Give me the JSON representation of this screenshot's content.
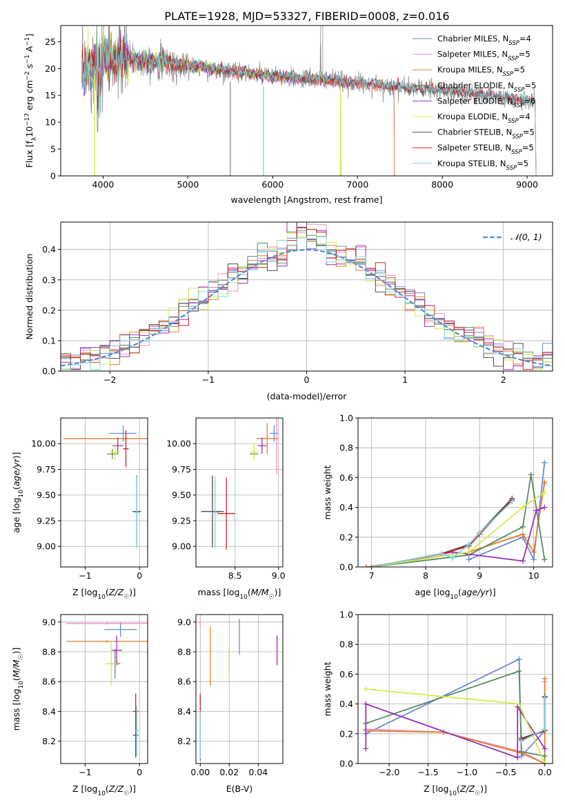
{
  "figure_title": "PLATE=1928, MJD=53327, FIBERID=0008, z=0.016",
  "colors": {
    "Chabrier MILES": "#6a8ad6",
    "Salpeter MILES": "#ee8fc4",
    "Kroupa MILES": "#e0822e",
    "Chabrier ELODIE": "#5a8a62",
    "Salpeter ELODIE": "#9a2fb8",
    "Kroupa ELODIE": "#d7ea4c",
    "Chabrier STELIB": "#4d4d4d",
    "Salpeter STELIB": "#c8202a",
    "Kroupa STELIB": "#7fd6dc",
    "data": "#8c8c8c",
    "normal": "#5b8bd5",
    "grid": "#b0b0b0"
  },
  "chart_data": [
    {
      "id": "spectrum",
      "type": "line",
      "xlabel": "wavelength [Angstrom, rest frame]",
      "ylabel": "Flux [f_λ10^-17 erg cm^-2 s^-1 A^-1]",
      "xlim": [
        3500,
        9300
      ],
      "ylim": [
        0,
        28
      ],
      "xticks": [
        4000,
        5000,
        6000,
        7000,
        8000,
        9000
      ],
      "yticks": [
        0,
        5,
        10,
        15,
        20,
        25
      ],
      "grid": false,
      "legend_position": "upper right",
      "legend": [
        {
          "model": "Chabrier MILES",
          "nssp": "4"
        },
        {
          "model": "Salpeter MILES",
          "nssp": "5"
        },
        {
          "model": "Kroupa MILES",
          "nssp": "5"
        },
        {
          "model": "Chabrier ELODIE",
          "nssp": "5"
        },
        {
          "model": "Salpeter ELODIE",
          "nssp": "6"
        },
        {
          "model": "Kroupa ELODIE",
          "nssp": "4"
        },
        {
          "model": "Chabrier STELIB",
          "nssp": "5"
        },
        {
          "model": "Salpeter STELIB",
          "nssp": "5"
        },
        {
          "model": "Kroupa STELIB",
          "nssp": "5"
        }
      ],
      "data_continuum": [
        [
          3750,
          19
        ],
        [
          4000,
          22
        ],
        [
          4500,
          21.5
        ],
        [
          5000,
          20.5
        ],
        [
          5500,
          19.5
        ],
        [
          6000,
          18.5
        ],
        [
          6500,
          18
        ],
        [
          7000,
          17.3
        ],
        [
          7500,
          16.5
        ],
        [
          8000,
          15.8
        ],
        [
          8500,
          15
        ],
        [
          9000,
          14
        ],
        [
          9100,
          13.5
        ]
      ],
      "model_range": {
        "MILES": [
          3750,
          7430
        ],
        "ELODIE": [
          3750,
          6800
        ],
        "STELIB": [
          3750,
          9100
        ]
      },
      "absorption_dips": [
        [
          3900,
          0
        ],
        [
          5890,
          0
        ],
        [
          6800,
          0
        ],
        [
          5500,
          0
        ]
      ]
    },
    {
      "id": "residuals",
      "type": "line",
      "xlabel": "(data-model)/error",
      "ylabel": "Normed distribution",
      "xlim": [
        -2.5,
        2.5
      ],
      "ylim": [
        0,
        0.49
      ],
      "xticks": [
        -2,
        -1,
        0,
        1,
        2
      ],
      "yticks": [
        0.0,
        0.1,
        0.2,
        0.3,
        0.4
      ],
      "grid": true,
      "legend_label": "𝒩(0, 1)",
      "legend_position": "upper right",
      "bin_width": 0.1
    },
    {
      "id": "age_vs_Z",
      "type": "scatter",
      "xlabel": "Z [log10(Z/Z☉)]",
      "ylabel": "age  [log10(age/yr)]",
      "xlim": [
        -1.45,
        0.15
      ],
      "ylim": [
        8.8,
        10.25
      ],
      "xticks": [
        -1,
        0
      ],
      "yticks": [
        9.0,
        9.25,
        9.5,
        9.75,
        10.0
      ],
      "grid": true,
      "points": [
        {
          "model": "Chabrier MILES",
          "x": -0.3,
          "y": 10.1,
          "xerr": 0.25,
          "yerr": 0.08
        },
        {
          "model": "Salpeter MILES",
          "x": -0.25,
          "y": 10.05,
          "xerr": 1.1,
          "yerr": 0.02
        },
        {
          "model": "Kroupa MILES",
          "x": -0.25,
          "y": 10.05,
          "xerr": 1.15,
          "yerr": 0.02
        },
        {
          "model": "Chabrier ELODIE",
          "x": -0.5,
          "y": 9.9,
          "xerr": 0.1,
          "yerr": 0.05
        },
        {
          "model": "Salpeter ELODIE",
          "x": -0.4,
          "y": 9.98,
          "xerr": 0.1,
          "yerr": 0.08
        },
        {
          "model": "Kroupa ELODIE",
          "x": -0.45,
          "y": 9.92,
          "xerr": 0.1,
          "yerr": 0.08
        },
        {
          "model": "Chabrier STELIB",
          "x": -0.05,
          "y": 9.34,
          "xerr": 0.08,
          "yerr": 0.35
        },
        {
          "model": "Salpeter STELIB",
          "x": -0.25,
          "y": 9.95,
          "xerr": 0.05,
          "yerr": 0.18
        },
        {
          "model": "Kroupa STELIB",
          "x": -0.05,
          "y": 9.33,
          "xerr": 0.05,
          "yerr": 0.35
        }
      ]
    },
    {
      "id": "age_vs_mass",
      "type": "scatter",
      "xlabel": "mass [log10(M/M☉)]",
      "ylabel": "",
      "xlim": [
        8.05,
        9.05
      ],
      "ylim": [
        8.8,
        10.25
      ],
      "xticks": [
        8.5,
        9.0
      ],
      "yticks": [
        9.0,
        9.25,
        9.5,
        9.75,
        10.0
      ],
      "grid": true,
      "points": [
        {
          "model": "Chabrier MILES",
          "x": 8.95,
          "y": 10.1,
          "xerr": 0.05,
          "yerr": 0.08
        },
        {
          "model": "Salpeter MILES",
          "x": 8.98,
          "y": 10.05,
          "xerr": 0.02,
          "yerr": 0.35
        },
        {
          "model": "Kroupa MILES",
          "x": 8.87,
          "y": 10.05,
          "xerr": 0.12,
          "yerr": 0.15
        },
        {
          "model": "Chabrier ELODIE",
          "x": 8.72,
          "y": 9.9,
          "xerr": 0.05,
          "yerr": 0.05
        },
        {
          "model": "Salpeter ELODIE",
          "x": 8.81,
          "y": 9.98,
          "xerr": 0.05,
          "yerr": 0.08
        },
        {
          "model": "Kroupa ELODIE",
          "x": 8.72,
          "y": 9.92,
          "xerr": 0.05,
          "yerr": 0.08
        },
        {
          "model": "Chabrier STELIB",
          "x": 8.24,
          "y": 9.34,
          "xerr": 0.13,
          "yerr": 0.35
        },
        {
          "model": "Salpeter STELIB",
          "x": 8.4,
          "y": 9.32,
          "xerr": 0.1,
          "yerr": 0.35
        },
        {
          "model": "Kroupa STELIB",
          "x": 8.27,
          "y": 9.33,
          "xerr": 0.05,
          "yerr": 0.35
        }
      ]
    },
    {
      "id": "weight_vs_age",
      "type": "line",
      "xlabel": "age  [log10(age/yr)]",
      "ylabel": "mass weight",
      "xlim": [
        6.75,
        10.35
      ],
      "ylim": [
        0,
        1.0
      ],
      "xticks": [
        7,
        8,
        9,
        10
      ],
      "yticks": [
        0.0,
        0.2,
        0.4,
        0.6,
        0.8,
        1.0
      ],
      "grid": true,
      "series": [
        {
          "model": "Chabrier MILES",
          "x": [
            8.8,
            9.8,
            10.0,
            10.2
          ],
          "y": [
            0.05,
            0.2,
            0.05,
            0.7
          ]
        },
        {
          "model": "Salpeter MILES",
          "x": [
            8.8,
            9.8,
            10.0,
            10.2
          ],
          "y": [
            0.1,
            0.22,
            0.1,
            0.56
          ]
        },
        {
          "model": "Kroupa MILES",
          "x": [
            6.9,
            8.8,
            9.8,
            10.0,
            10.2
          ],
          "y": [
            0.0,
            0.1,
            0.22,
            0.1,
            0.57
          ]
        },
        {
          "model": "Chabrier ELODIE",
          "x": [
            7.0,
            8.8,
            9.8,
            9.95,
            10.2
          ],
          "y": [
            0.0,
            0.08,
            0.27,
            0.62,
            0.05
          ]
        },
        {
          "model": "Salpeter ELODIE",
          "x": [
            7.0,
            8.5,
            9.8,
            10.05,
            10.2
          ],
          "y": [
            0.0,
            0.1,
            0.04,
            0.38,
            0.4
          ]
        },
        {
          "model": "Kroupa ELODIE",
          "x": [
            7.0,
            8.8,
            9.8,
            10.2
          ],
          "y": [
            0.0,
            0.1,
            0.4,
            0.5
          ]
        },
        {
          "model": "Chabrier STELIB",
          "x": [
            7.0,
            8.3,
            8.8,
            9.0,
            9.6
          ],
          "y": [
            0.0,
            0.09,
            0.15,
            0.23,
            0.46
          ]
        },
        {
          "model": "Salpeter STELIB",
          "x": [
            7.0,
            8.3,
            8.8,
            9.0,
            9.6
          ],
          "y": [
            0.0,
            0.09,
            0.14,
            0.22,
            0.45
          ]
        },
        {
          "model": "Kroupa STELIB",
          "x": [
            7.0,
            8.3,
            8.5,
            8.8,
            9.0,
            9.6
          ],
          "y": [
            0.0,
            0.09,
            0.06,
            0.15,
            0.23,
            0.44
          ]
        }
      ]
    },
    {
      "id": "mass_vs_Z",
      "type": "scatter",
      "xlabel": "Z [log10(Z/Z☉)]",
      "ylabel": "mass [log10(M/M☉)]",
      "xlim": [
        -1.45,
        0.15
      ],
      "ylim": [
        8.05,
        9.05
      ],
      "xticks": [
        -1,
        0
      ],
      "yticks": [
        8.2,
        8.4,
        8.6,
        8.8,
        9.0
      ],
      "grid": true,
      "points": [
        {
          "model": "Chabrier MILES",
          "x": -0.35,
          "y": 8.95,
          "xerr": 0.3,
          "yerr": 0.05
        },
        {
          "model": "Salpeter MILES",
          "x": -0.6,
          "y": 8.99,
          "xerr": 0.75,
          "yerr": 0.01
        },
        {
          "model": "Kroupa MILES",
          "x": -0.6,
          "y": 8.87,
          "xerr": 0.75,
          "yerr": 0.01
        },
        {
          "model": "Chabrier ELODIE",
          "x": -0.45,
          "y": 8.72,
          "xerr": 0.1,
          "yerr": 0.1
        },
        {
          "model": "Salpeter ELODIE",
          "x": -0.42,
          "y": 8.81,
          "xerr": 0.1,
          "yerr": 0.1
        },
        {
          "model": "Kroupa ELODIE",
          "x": -0.52,
          "y": 8.72,
          "xerr": 0.1,
          "yerr": 0.15
        },
        {
          "model": "Chabrier STELIB",
          "x": -0.07,
          "y": 8.24,
          "xerr": 0.05,
          "yerr": 0.15
        },
        {
          "model": "Salpeter STELIB",
          "x": -0.07,
          "y": 8.4,
          "xerr": 0.05,
          "yerr": 0.12
        },
        {
          "model": "Kroupa STELIB",
          "x": -0.05,
          "y": 8.27,
          "xerr": 0.04,
          "yerr": 0.17
        }
      ]
    },
    {
      "id": "mass_vs_EBV",
      "type": "scatter",
      "xlabel": "E(B-V)",
      "ylabel": "",
      "xlim": [
        -0.003,
        0.057
      ],
      "ylim": [
        8.05,
        9.05
      ],
      "xticks": [
        0.0,
        0.02,
        0.04
      ],
      "yticks": [
        8.2,
        8.4,
        8.6,
        8.8,
        9.0
      ],
      "grid": true,
      "points": [
        {
          "model": "Chabrier MILES",
          "x": 0.027,
          "y": 8.9,
          "xerr": 0,
          "yerr": 0.12
        },
        {
          "model": "Salpeter MILES",
          "x": 0.0,
          "y": 8.99,
          "xerr": 0,
          "yerr": 0.02
        },
        {
          "model": "Kroupa MILES",
          "x": 0.007,
          "y": 8.77,
          "xerr": 0,
          "yerr": 0.2
        },
        {
          "model": "Chabrier ELODIE",
          "x": 0.02,
          "y": 8.75,
          "xerr": 0,
          "yerr": 0.07
        },
        {
          "model": "Salpeter ELODIE",
          "x": 0.053,
          "y": 8.81,
          "xerr": 0,
          "yerr": 0.1
        },
        {
          "model": "Kroupa ELODIE",
          "x": 0.02,
          "y": 8.72,
          "xerr": 0,
          "yerr": 0.1
        },
        {
          "model": "Chabrier STELIB",
          "x": 0.0,
          "y": 8.22,
          "xerr": 0,
          "yerr": 0.15
        },
        {
          "model": "Salpeter STELIB",
          "x": 0.0,
          "y": 8.42,
          "xerr": 0,
          "yerr": 0.1
        },
        {
          "model": "Kroupa STELIB",
          "x": 0.0,
          "y": 8.24,
          "xerr": 0,
          "yerr": 0.16
        }
      ]
    },
    {
      "id": "weight_vs_Z",
      "type": "line",
      "xlabel": "Z [log10(Z/Z☉)]",
      "ylabel": "mass weight",
      "xlim": [
        -2.4,
        0.1
      ],
      "ylim": [
        0,
        1.0
      ],
      "xticks": [
        -2.0,
        -1.5,
        -1.0,
        -0.5,
        0.0
      ],
      "yticks": [
        0.0,
        0.2,
        0.4,
        0.6,
        0.8,
        1.0
      ],
      "grid": true,
      "series": [
        {
          "model": "Chabrier MILES",
          "x": [
            -2.3,
            -0.33,
            -0.3,
            0.0,
            0.0
          ],
          "y": [
            0.2,
            0.7,
            0.05,
            0.22,
            0.45
          ]
        },
        {
          "model": "Salpeter MILES",
          "x": [
            -2.3,
            -1.3,
            -0.3,
            0.0,
            0.0
          ],
          "y": [
            0.23,
            0.21,
            0.08,
            0.0,
            0.55
          ]
        },
        {
          "model": "Kroupa MILES",
          "x": [
            -2.3,
            -1.3,
            -0.3,
            0.0,
            0.0
          ],
          "y": [
            0.22,
            0.21,
            0.07,
            0.0,
            0.57
          ]
        },
        {
          "model": "Chabrier ELODIE",
          "x": [
            -2.3,
            -0.33,
            -0.3,
            0.0
          ],
          "y": [
            0.27,
            0.62,
            0.08,
            0.05
          ]
        },
        {
          "model": "Salpeter ELODIE",
          "x": [
            -2.3,
            -2.3,
            -0.35,
            -0.35,
            0.0
          ],
          "y": [
            0.1,
            0.4,
            0.04,
            0.38,
            0.1
          ]
        },
        {
          "model": "Kroupa ELODIE",
          "x": [
            -2.3,
            -0.33,
            0.0
          ],
          "y": [
            0.5,
            0.4,
            0.0
          ]
        },
        {
          "model": "Chabrier STELIB",
          "x": [
            -0.3,
            0.0,
            0.0
          ],
          "y": [
            0.17,
            0.22,
            0.45
          ]
        },
        {
          "model": "Salpeter STELIB",
          "x": [
            -0.3,
            0.0,
            0.0
          ],
          "y": [
            0.16,
            0.22,
            0.44
          ]
        },
        {
          "model": "Kroupa STELIB",
          "x": [
            -0.3,
            0.0,
            0.0
          ],
          "y": [
            0.15,
            0.23,
            0.44
          ]
        }
      ]
    }
  ]
}
